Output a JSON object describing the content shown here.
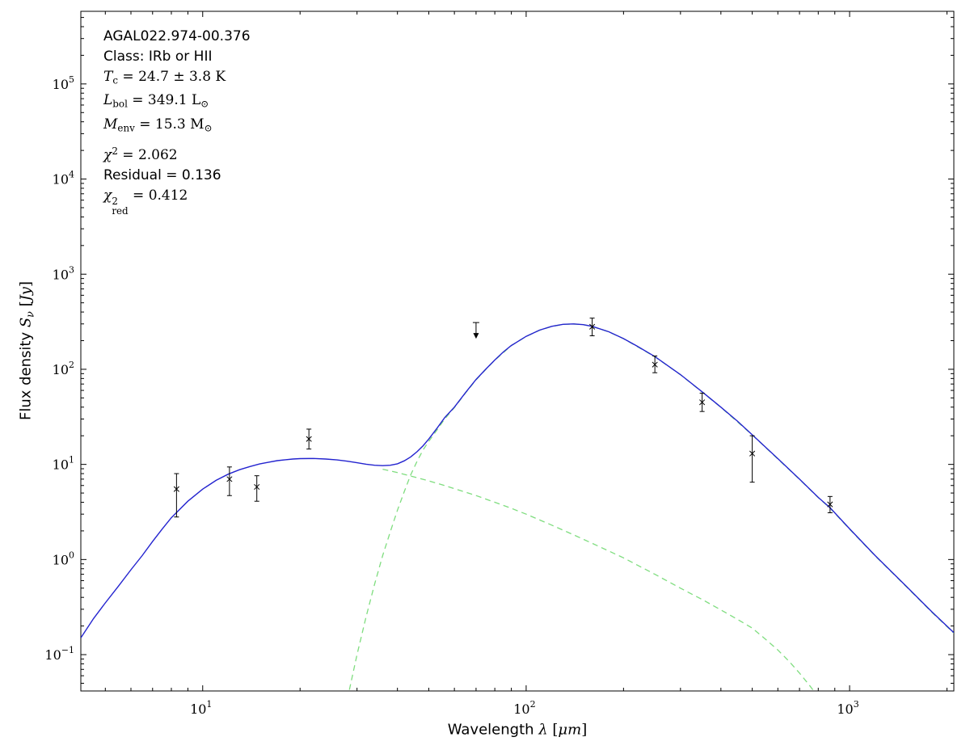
{
  "figure": {
    "background": "#ffffff"
  },
  "chart_data": {
    "type": "line",
    "title": "",
    "xlabel": "Wavelength λ [μm]",
    "ylabel": "Flux density S_ν [Jy]",
    "x_scale": "log",
    "y_scale": "log",
    "xlim": [
      4.2,
      2100
    ],
    "ylim": [
      0.0415,
      580000
    ],
    "grid": false,
    "legend": false,
    "x_major_ticks": [
      10,
      100,
      1000
    ],
    "y_major_ticks": [
      0.1,
      1,
      10,
      100,
      1000,
      10000,
      100000
    ],
    "xlabel_segments": [
      {
        "t": "Wavelength ",
        "style": "sans"
      },
      {
        "t": "λ",
        "style": "mathit"
      },
      {
        "t": " [",
        "style": "math"
      },
      {
        "t": "μ",
        "style": "mathit"
      },
      {
        "t": "m",
        "style": "mathit"
      },
      {
        "t": "]",
        "style": "math"
      }
    ],
    "ylabel_segments": [
      {
        "t": "Flux density ",
        "style": "sans"
      },
      {
        "t": "S",
        "style": "mathit"
      },
      {
        "t": "ν",
        "style": "mathit-sub"
      },
      {
        "t": " [",
        "style": "math"
      },
      {
        "t": "Jy",
        "style": "mathit"
      },
      {
        "t": "]",
        "style": "math"
      }
    ],
    "annotations": [
      {
        "name": "source-name",
        "font": "sans",
        "segments": [
          {
            "t": "AGAL022.974-00.376"
          }
        ]
      },
      {
        "name": "class",
        "font": "sans",
        "segments": [
          {
            "t": "Class: IRb or HII"
          }
        ]
      },
      {
        "name": "dust-temperature",
        "font": "math",
        "segments": [
          {
            "t": "T",
            "style": "italic"
          },
          {
            "t": "c",
            "style": "sub"
          },
          {
            "t": " = 24.7 ± 3.8 K"
          }
        ]
      },
      {
        "name": "bolometric-luminosity",
        "font": "math",
        "segments": [
          {
            "t": "L",
            "style": "italic"
          },
          {
            "t": "bol",
            "style": "sub"
          },
          {
            "t": " = 349.1 L"
          },
          {
            "t": "⊙",
            "style": "sub"
          }
        ]
      },
      {
        "name": "envelope-mass",
        "font": "math",
        "segments": [
          {
            "t": "M",
            "style": "italic"
          },
          {
            "t": "env",
            "style": "sub"
          },
          {
            "t": " = 15.3 M"
          },
          {
            "t": "⊙",
            "style": "sub"
          }
        ]
      },
      {
        "name": "chi-squared",
        "font": "math",
        "segments": [
          {
            "t": "χ",
            "style": "italic"
          },
          {
            "t": "2",
            "style": "sup"
          },
          {
            "t": " = 2.062"
          }
        ]
      },
      {
        "name": "residual",
        "font": "sans",
        "segments": [
          {
            "t": "Residual = 0.136"
          }
        ]
      },
      {
        "name": "chi-squared-reduced",
        "font": "math",
        "segments": [
          {
            "t": "χ",
            "style": "italic"
          },
          {
            "style": "supsub",
            "sup": "2",
            "sub": "red"
          },
          {
            "t": " = 0.412"
          }
        ]
      }
    ],
    "colors": {
      "total": "#2323cf",
      "component": "#7fdd7f",
      "data": "#000000"
    },
    "series": [
      {
        "name": "warm-component",
        "color": "#7fdd7f",
        "style": "dashed",
        "points": [
          [
            36,
            8.9
          ],
          [
            38,
            8.55
          ],
          [
            40,
            8.2
          ],
          [
            43,
            7.7
          ],
          [
            46,
            7.25
          ],
          [
            50,
            6.7
          ],
          [
            55,
            6.1
          ],
          [
            60,
            5.55
          ],
          [
            65,
            5.1
          ],
          [
            70,
            4.7
          ],
          [
            80,
            4.0
          ],
          [
            90,
            3.45
          ],
          [
            100,
            3.0
          ],
          [
            120,
            2.3
          ],
          [
            140,
            1.82
          ],
          [
            160,
            1.48
          ],
          [
            180,
            1.23
          ],
          [
            200,
            1.04
          ],
          [
            250,
            0.7
          ],
          [
            300,
            0.5
          ],
          [
            350,
            0.38
          ],
          [
            400,
            0.295
          ],
          [
            450,
            0.235
          ],
          [
            500,
            0.19
          ],
          [
            550,
            0.145
          ],
          [
            600,
            0.112
          ],
          [
            650,
            0.085
          ],
          [
            700,
            0.064
          ],
          [
            750,
            0.048
          ],
          [
            800,
            0.036
          ]
        ]
      },
      {
        "name": "cold-component",
        "color": "#7fdd7f",
        "style": "dashed",
        "points": [
          [
            28,
            0.034
          ],
          [
            30,
            0.1
          ],
          [
            32,
            0.25
          ],
          [
            34,
            0.55
          ],
          [
            36,
            1.1
          ],
          [
            38,
            1.95
          ],
          [
            40,
            3.3
          ],
          [
            42,
            5.2
          ],
          [
            44,
            7.8
          ],
          [
            46,
            10.8
          ],
          [
            48,
            14.2
          ],
          [
            50,
            17.5
          ],
          [
            53,
            23.0
          ],
          [
            56,
            30.0
          ],
          [
            60,
            39.5
          ],
          [
            65,
            56.5
          ],
          [
            70,
            77.5
          ],
          [
            75,
            99.5
          ],
          [
            80,
            124.5
          ],
          [
            90,
            177.5
          ],
          [
            100,
            221.5
          ],
          [
            110,
            257.5
          ],
          [
            120,
            282.5
          ],
          [
            130,
            296.5
          ],
          [
            140,
            299.5
          ],
          [
            150,
            294.5
          ],
          [
            160,
            282.5
          ],
          [
            180,
            247.5
          ],
          [
            200,
            209.5
          ],
          [
            250,
            135.5
          ],
          [
            300,
            87.7
          ],
          [
            350,
            57.7
          ],
          [
            400,
            39.8
          ],
          [
            500,
            20.4
          ],
          [
            600,
            11.4
          ],
          [
            700,
            6.95
          ],
          [
            800,
            4.47
          ],
          [
            870,
            3.47
          ],
          [
            1000,
            2.08
          ],
          [
            1200,
            1.09
          ],
          [
            1500,
            0.515
          ],
          [
            1800,
            0.277
          ],
          [
            2100,
            0.168
          ]
        ]
      },
      {
        "name": "total-model",
        "color": "#2323cf",
        "style": "solid",
        "points": [
          [
            4.2,
            0.15
          ],
          [
            4.6,
            0.24
          ],
          [
            5.0,
            0.35
          ],
          [
            5.5,
            0.53
          ],
          [
            6.0,
            0.78
          ],
          [
            6.5,
            1.1
          ],
          [
            7.0,
            1.55
          ],
          [
            7.5,
            2.1
          ],
          [
            8.0,
            2.75
          ],
          [
            9.0,
            4.1
          ],
          [
            10,
            5.5
          ],
          [
            11,
            6.8
          ],
          [
            12,
            7.9
          ],
          [
            13,
            8.8
          ],
          [
            14,
            9.5
          ],
          [
            15,
            10.1
          ],
          [
            16,
            10.55
          ],
          [
            17,
            10.95
          ],
          [
            18,
            11.2
          ],
          [
            19,
            11.4
          ],
          [
            20,
            11.5
          ],
          [
            22,
            11.55
          ],
          [
            24,
            11.4
          ],
          [
            26,
            11.15
          ],
          [
            28,
            10.8
          ],
          [
            30,
            10.4
          ],
          [
            32,
            10.05
          ],
          [
            34,
            9.8
          ],
          [
            36,
            9.7
          ],
          [
            38,
            9.8
          ],
          [
            40,
            10.15
          ],
          [
            42,
            10.9
          ],
          [
            44,
            12.0
          ],
          [
            46,
            13.6
          ],
          [
            48,
            15.7
          ],
          [
            50,
            18.5
          ],
          [
            53,
            24.0
          ],
          [
            56,
            31.0
          ],
          [
            60,
            40.0
          ],
          [
            65,
            57.0
          ],
          [
            70,
            78.0
          ],
          [
            75,
            100.0
          ],
          [
            80,
            125.0
          ],
          [
            85,
            152.0
          ],
          [
            90,
            178.0
          ],
          [
            100,
            222.0
          ],
          [
            110,
            258.0
          ],
          [
            120,
            283.0
          ],
          [
            130,
            297.0
          ],
          [
            140,
            300.0
          ],
          [
            150,
            295.0
          ],
          [
            160,
            283.0
          ],
          [
            180,
            248.0
          ],
          [
            200,
            210.0
          ],
          [
            220,
            176.0
          ],
          [
            250,
            136.0
          ],
          [
            300,
            88.0
          ],
          [
            350,
            58.0
          ],
          [
            400,
            40.0
          ],
          [
            450,
            28.5
          ],
          [
            500,
            20.5
          ],
          [
            600,
            11.5
          ],
          [
            700,
            7.0
          ],
          [
            800,
            4.5
          ],
          [
            870,
            3.5
          ],
          [
            1000,
            2.1
          ],
          [
            1200,
            1.1
          ],
          [
            1500,
            0.52
          ],
          [
            1800,
            0.28
          ],
          [
            2100,
            0.17
          ]
        ]
      }
    ],
    "data_points": [
      {
        "x": 8.3,
        "y": 5.5,
        "ylo": 2.8,
        "yhi": 8.0,
        "marker": "x"
      },
      {
        "x": 12.1,
        "y": 7.0,
        "ylo": 4.7,
        "yhi": 9.4,
        "marker": "x"
      },
      {
        "x": 14.7,
        "y": 5.8,
        "ylo": 4.1,
        "yhi": 7.6,
        "marker": "x"
      },
      {
        "x": 21.3,
        "y": 18.5,
        "ylo": 14.5,
        "yhi": 23.5,
        "marker": "x"
      },
      {
        "x": 70,
        "y": 310,
        "upper_limit": true
      },
      {
        "x": 160,
        "y": 280,
        "ylo": 225,
        "yhi": 345,
        "marker": "x"
      },
      {
        "x": 250,
        "y": 112,
        "ylo": 92,
        "yhi": 138,
        "marker": "x"
      },
      {
        "x": 350,
        "y": 45,
        "ylo": 36,
        "yhi": 56,
        "marker": "x"
      },
      {
        "x": 500,
        "y": 13,
        "ylo": 6.5,
        "yhi": 20,
        "marker": "x"
      },
      {
        "x": 870,
        "y": 3.8,
        "ylo": 3.1,
        "yhi": 4.6,
        "marker": "x"
      }
    ]
  }
}
